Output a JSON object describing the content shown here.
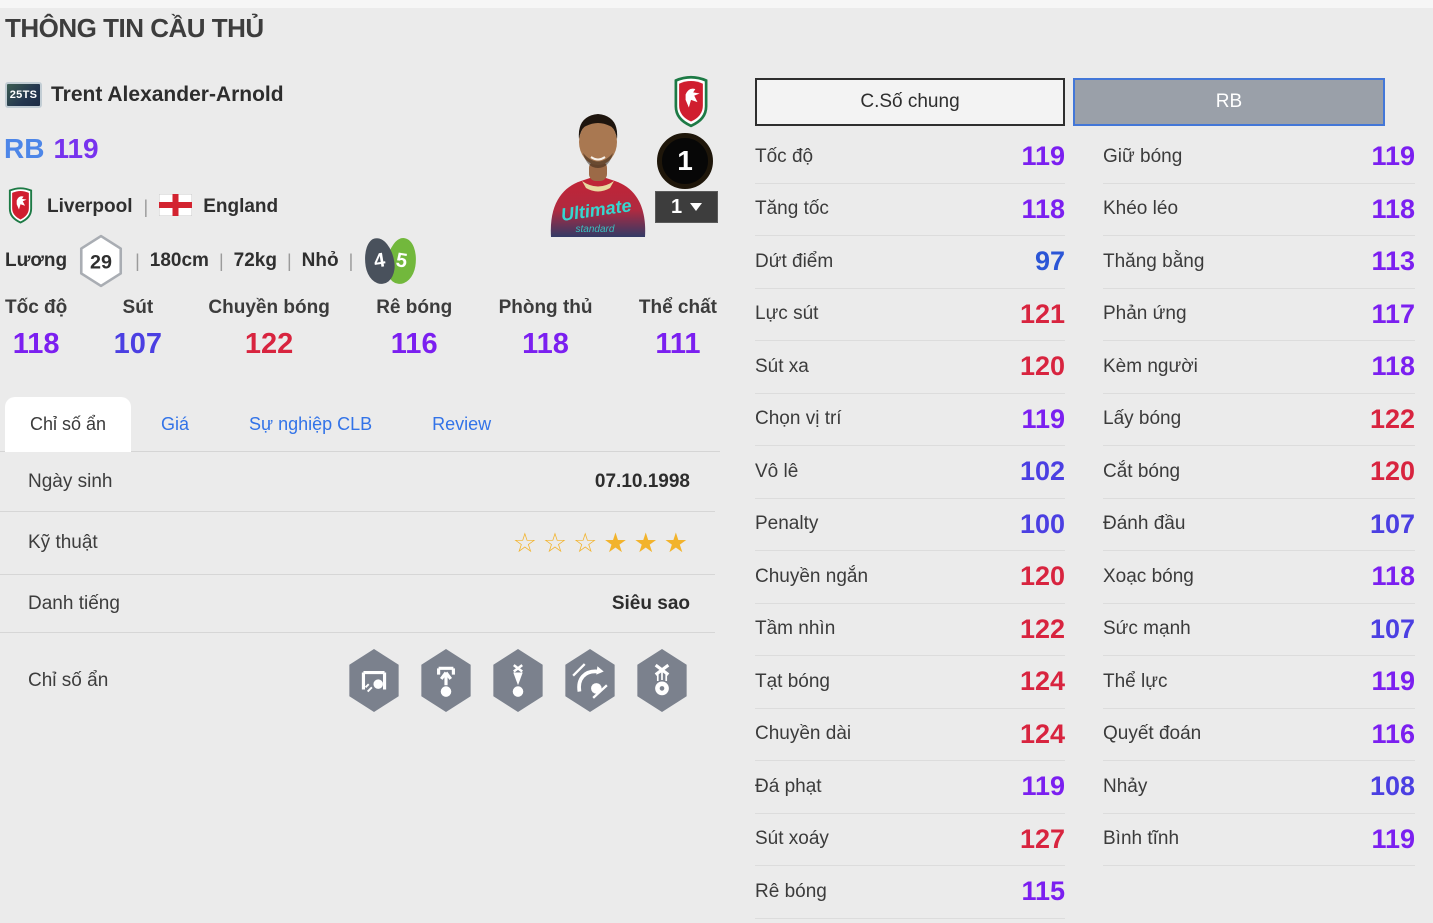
{
  "colors": {
    "background": "#ebebeb",
    "position_blue": "#4d86e8",
    "rating_purple": "#7733ee",
    "link_blue": "#3273e8",
    "tier_red": "#d8243f",
    "tier_purple": "#7b1ff0",
    "tier_indigo": "#4b3fe2",
    "tier_blue": "#2b55d6",
    "star_gold": "#f2b32c",
    "foot_dark": "#49515c",
    "foot_green": "#72b83c",
    "button_gray": "#9aa0a9",
    "button_border_blue": "#4377d8"
  },
  "header": {
    "title": "THÔNG TIN CẦU THỦ"
  },
  "player": {
    "season_badge": "25TS",
    "name": "Trent Alexander-Arnold",
    "position": "RB",
    "rating": "119",
    "club": "Liverpool",
    "nation": "England",
    "separator": "|",
    "salary_label": "Lương",
    "salary": "29",
    "height": "180cm",
    "weight": "72kg",
    "body_type": "Nhỏ",
    "weak_foot": "4",
    "preferred_foot": "5",
    "level_badge": "1",
    "level_dropdown": "1"
  },
  "summary_stats": [
    {
      "label": "Tốc độ",
      "value": 118
    },
    {
      "label": "Sút",
      "value": 107
    },
    {
      "label": "Chuyền bóng",
      "value": 122
    },
    {
      "label": "Rê bóng",
      "value": 116
    },
    {
      "label": "Phòng thủ",
      "value": 118
    },
    {
      "label": "Thể chất",
      "value": 111
    }
  ],
  "tabs": [
    {
      "label": "Chỉ số ẩn",
      "active": true
    },
    {
      "label": "Giá",
      "active": false
    },
    {
      "label": "Sự nghiệp CLB",
      "active": false
    },
    {
      "label": "Review",
      "active": false
    }
  ],
  "info_rows": {
    "birth": {
      "label": "Ngày sinh",
      "value": "07.10.1998"
    },
    "skill": {
      "label": "Kỹ thuật",
      "empty_stars": 3,
      "filled_stars": 3
    },
    "reputation": {
      "label": "Danh tiếng",
      "value": "Siêu sao"
    },
    "hidden": {
      "label": "Chỉ số ẩn",
      "icons": [
        "goal-shot-icon",
        "power-throw-icon",
        "high-launch-icon",
        "curve-run-icon",
        "ball-juggle-icon"
      ]
    }
  },
  "stat_panel": {
    "tabs": [
      {
        "label": "C.Số chung",
        "active": false
      },
      {
        "label": "RB",
        "active": true
      }
    ],
    "left": [
      {
        "label": "Tốc độ",
        "value": 119
      },
      {
        "label": "Tăng tốc",
        "value": 118
      },
      {
        "label": "Dứt điểm",
        "value": 97
      },
      {
        "label": "Lực sút",
        "value": 121
      },
      {
        "label": "Sút xa",
        "value": 120
      },
      {
        "label": "Chọn vị trí",
        "value": 119
      },
      {
        "label": "Vô lê",
        "value": 102
      },
      {
        "label": "Penalty",
        "value": 100
      },
      {
        "label": "Chuyền ngắn",
        "value": 120
      },
      {
        "label": "Tầm nhìn",
        "value": 122
      },
      {
        "label": "Tạt bóng",
        "value": 124
      },
      {
        "label": "Chuyền dài",
        "value": 124
      },
      {
        "label": "Đá phạt",
        "value": 119
      },
      {
        "label": "Sút xoáy",
        "value": 127
      },
      {
        "label": "Rê bóng",
        "value": 115
      }
    ],
    "right": [
      {
        "label": "Giữ bóng",
        "value": 119
      },
      {
        "label": "Khéo léo",
        "value": 118
      },
      {
        "label": "Thăng bằng",
        "value": 113
      },
      {
        "label": "Phản ứng",
        "value": 117
      },
      {
        "label": "Kèm người",
        "value": 118
      },
      {
        "label": "Lấy bóng",
        "value": 122
      },
      {
        "label": "Cắt bóng",
        "value": 120
      },
      {
        "label": "Đánh đầu",
        "value": 107
      },
      {
        "label": "Xoạc bóng",
        "value": 118
      },
      {
        "label": "Sức mạnh",
        "value": 107
      },
      {
        "label": "Thể lực",
        "value": 119
      },
      {
        "label": "Quyết đoán",
        "value": 116
      },
      {
        "label": "Nhảy",
        "value": 108
      },
      {
        "label": "Bình tĩnh",
        "value": 119
      }
    ]
  }
}
